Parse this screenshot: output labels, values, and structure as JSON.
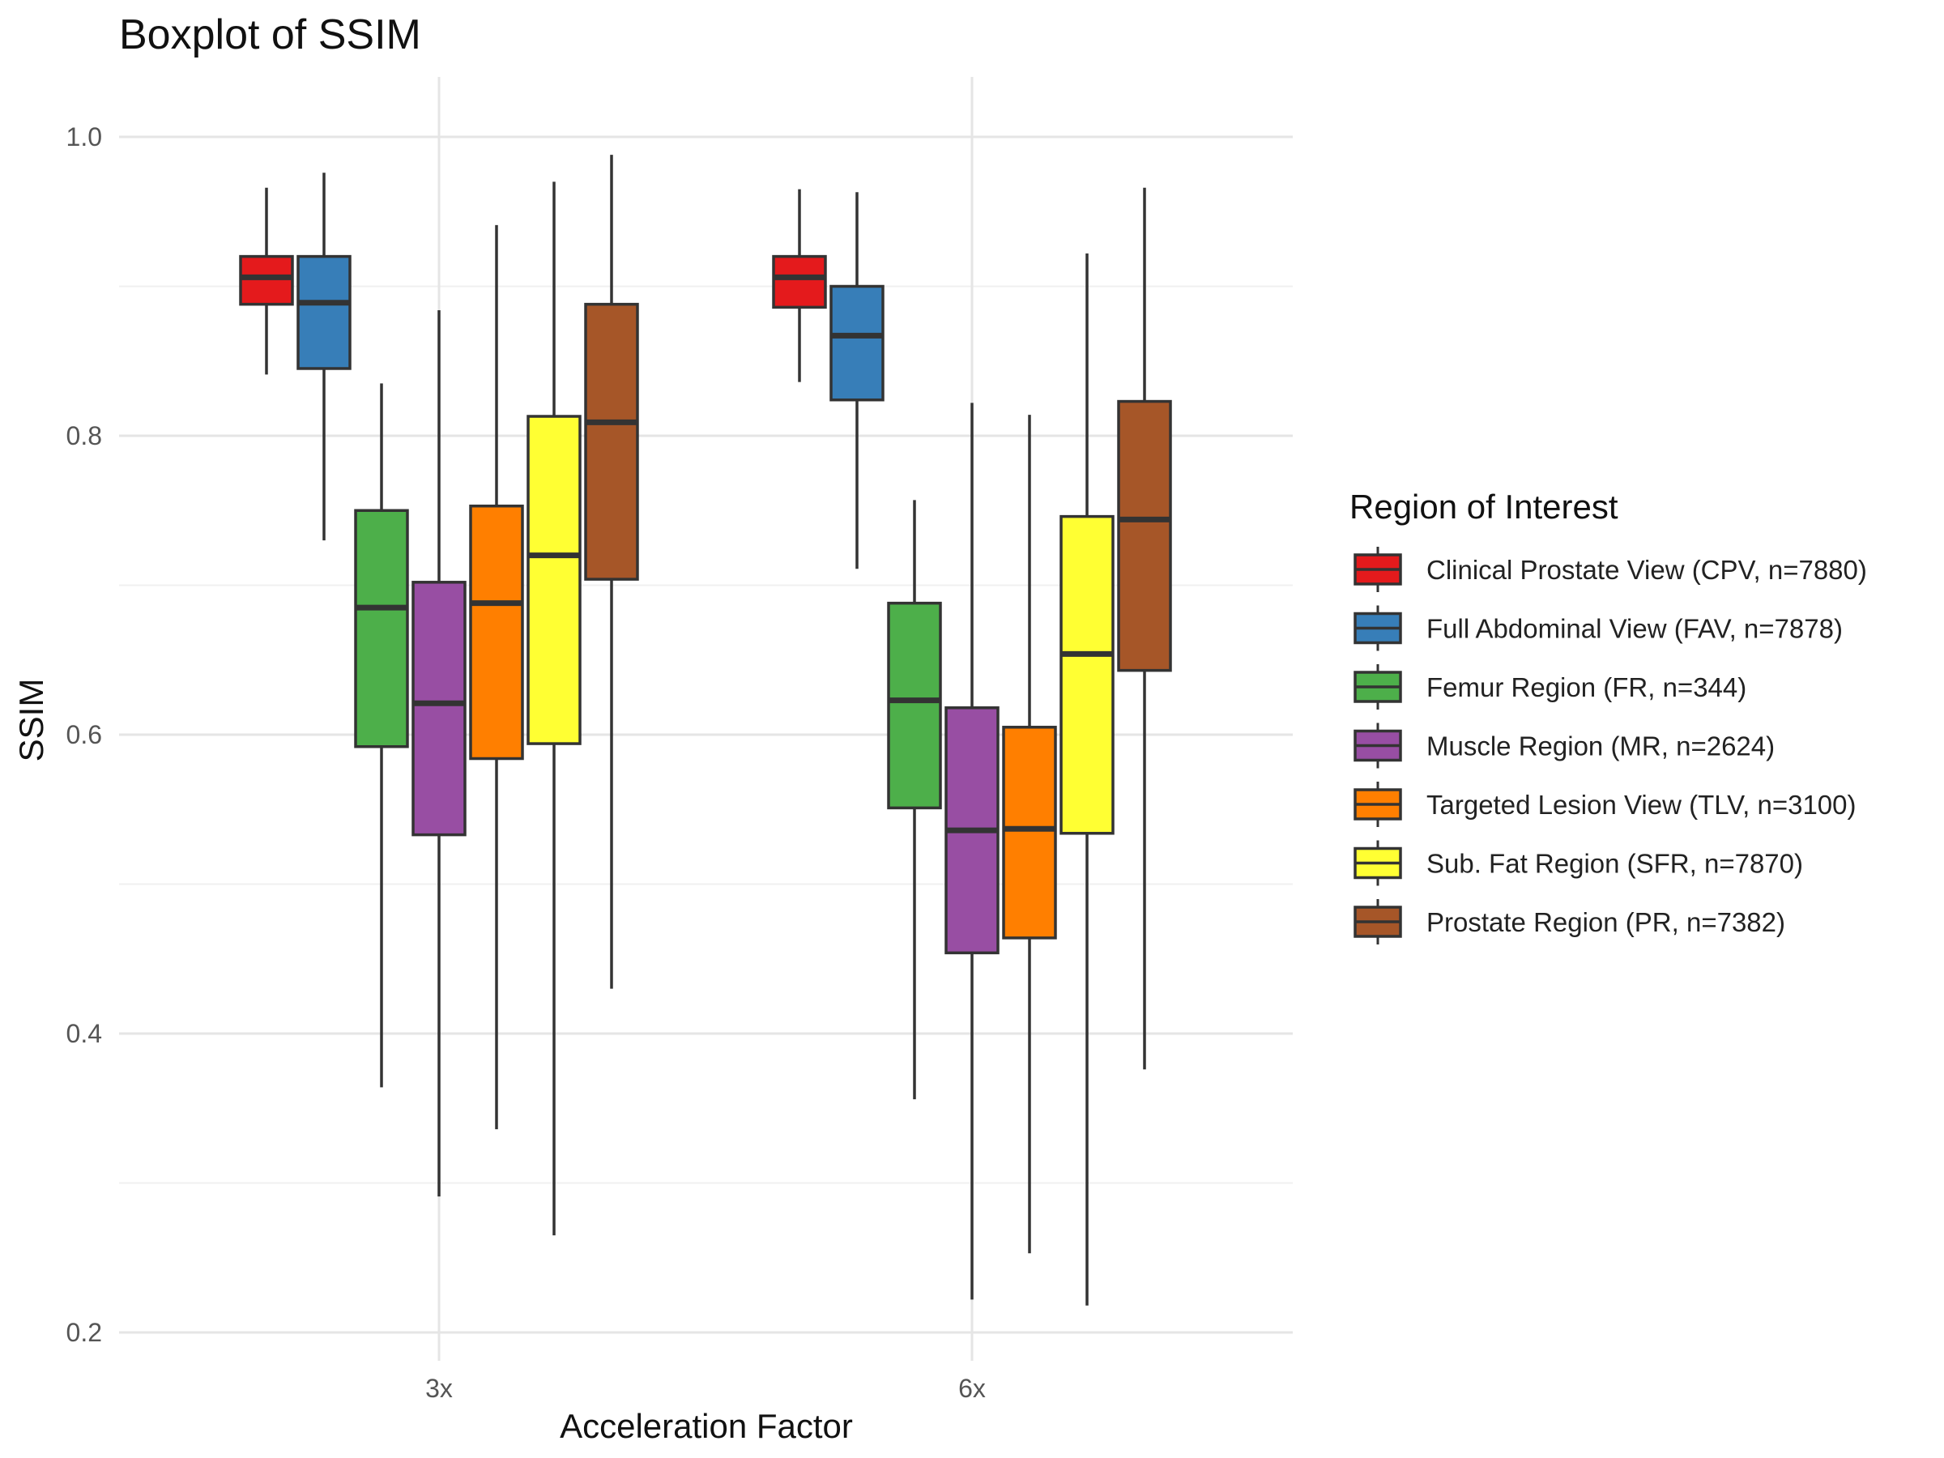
{
  "chart_data": {
    "type": "boxplot",
    "title": "Boxplot of SSIM",
    "xlabel": "Acceleration Factor",
    "ylabel": "SSIM",
    "categories": [
      "3x",
      "6x"
    ],
    "ylim": [
      0.16,
      1.04
    ],
    "yticks": [
      0.2,
      0.4,
      0.6,
      0.8,
      1.0
    ],
    "ytick_labels": [
      "0.2",
      "0.4",
      "0.6",
      "0.8",
      "1.0"
    ],
    "grid": true,
    "legend": {
      "title": "Region of Interest",
      "position": "right"
    },
    "series": [
      {
        "name": "Clinical Prostate View (CPV, n=7880)",
        "color": "#E41A1C",
        "stats": [
          {
            "min": 0.841,
            "q1": 0.888,
            "median": 0.906,
            "q3": 0.92,
            "max": 0.966
          },
          {
            "min": 0.836,
            "q1": 0.886,
            "median": 0.906,
            "q3": 0.92,
            "max": 0.965
          }
        ]
      },
      {
        "name": "Full Abdominal View (FAV, n=7878)",
        "color": "#377EB8",
        "stats": [
          {
            "min": 0.73,
            "q1": 0.845,
            "median": 0.889,
            "q3": 0.92,
            "max": 0.976
          },
          {
            "min": 0.711,
            "q1": 0.824,
            "median": 0.867,
            "q3": 0.9,
            "max": 0.963
          }
        ]
      },
      {
        "name": "Femur Region (FR, n=344)",
        "color": "#4DAF4A",
        "stats": [
          {
            "min": 0.364,
            "q1": 0.592,
            "median": 0.685,
            "q3": 0.75,
            "max": 0.835
          },
          {
            "min": 0.356,
            "q1": 0.551,
            "median": 0.623,
            "q3": 0.688,
            "max": 0.757
          }
        ]
      },
      {
        "name": "Muscle Region (MR, n=2624)",
        "color": "#984EA3",
        "stats": [
          {
            "min": 0.291,
            "q1": 0.533,
            "median": 0.621,
            "q3": 0.702,
            "max": 0.884
          },
          {
            "min": 0.222,
            "q1": 0.454,
            "median": 0.536,
            "q3": 0.618,
            "max": 0.822
          }
        ]
      },
      {
        "name": "Targeted Lesion View (TLV, n=3100)",
        "color": "#FF7F00",
        "stats": [
          {
            "min": 0.336,
            "q1": 0.584,
            "median": 0.688,
            "q3": 0.753,
            "max": 0.941
          },
          {
            "min": 0.253,
            "q1": 0.464,
            "median": 0.537,
            "q3": 0.605,
            "max": 0.814
          }
        ]
      },
      {
        "name": "Sub. Fat Region (SFR, n=7870)",
        "color": "#FFFF33",
        "stats": [
          {
            "min": 0.265,
            "q1": 0.594,
            "median": 0.72,
            "q3": 0.813,
            "max": 0.97
          },
          {
            "min": 0.218,
            "q1": 0.534,
            "median": 0.654,
            "q3": 0.746,
            "max": 0.922
          }
        ]
      },
      {
        "name": "Prostate Region (PR, n=7382)",
        "color": "#A65628",
        "stats": [
          {
            "min": 0.43,
            "q1": 0.704,
            "median": 0.809,
            "q3": 0.888,
            "max": 0.988
          },
          {
            "min": 0.376,
            "q1": 0.643,
            "median": 0.744,
            "q3": 0.823,
            "max": 0.966
          }
        ]
      }
    ]
  }
}
